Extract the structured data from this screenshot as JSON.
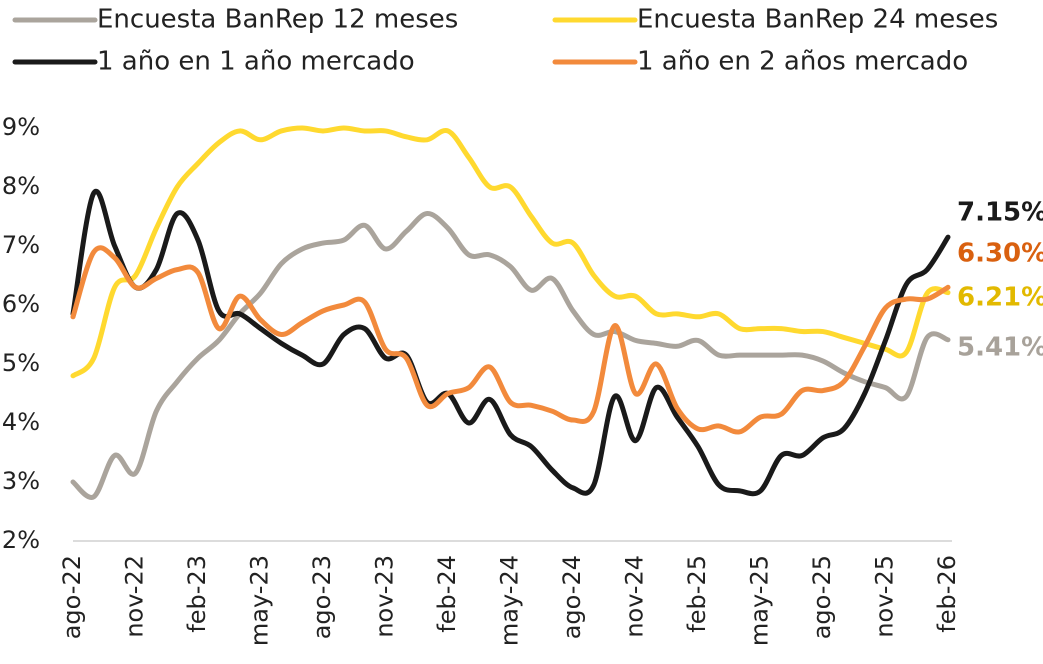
{
  "chart_data": {
    "type": "line",
    "categories": [
      "ago-22",
      null,
      null,
      "nov-22",
      null,
      null,
      "feb-23",
      null,
      null,
      "may-23",
      null,
      null,
      "ago-23",
      null,
      null,
      "nov-23",
      null,
      null,
      "feb-24",
      null,
      null,
      "may-24",
      null,
      null,
      "ago-24",
      null,
      null,
      "nov-24",
      null,
      null,
      "feb-25",
      null,
      null,
      "may-25",
      null,
      null,
      "ago-25",
      null,
      null,
      "nov-25",
      null,
      null,
      "feb-26"
    ],
    "series": [
      {
        "name": "Encuesta BanRep 12 meses",
        "color": "#aaa49c",
        "label_color": "#a8a29a",
        "values": [
          3.0,
          2.75,
          3.45,
          3.15,
          4.2,
          4.7,
          5.1,
          5.4,
          5.85,
          6.2,
          6.7,
          6.95,
          7.05,
          7.1,
          7.35,
          6.95,
          7.25,
          7.55,
          7.3,
          6.85,
          6.85,
          6.65,
          6.25,
          6.45,
          5.9,
          5.5,
          5.55,
          5.4,
          5.35,
          5.3,
          5.4,
          5.15,
          5.15,
          5.15,
          5.15,
          5.15,
          5.05,
          4.85,
          4.7,
          4.6,
          4.45,
          5.45,
          5.41
        ],
        "value_labels": [
          null,
          null,
          null,
          null,
          null,
          null,
          null,
          null,
          null,
          null,
          null,
          null,
          null,
          null,
          null,
          null,
          null,
          null,
          null,
          null,
          null,
          null,
          null,
          null,
          null,
          null,
          null,
          null,
          null,
          null,
          null,
          null,
          null,
          null,
          null,
          null,
          null,
          null,
          null,
          null,
          null,
          null,
          "5.41%"
        ]
      },
      {
        "name": "Encuesta BanRep 24 meses",
        "color": "#ffd92f",
        "label_color": "#e2b900",
        "values": [
          4.8,
          5.1,
          6.3,
          6.5,
          7.3,
          8.0,
          8.4,
          8.75,
          8.95,
          8.8,
          8.95,
          9.0,
          8.95,
          9.0,
          8.95,
          8.95,
          8.85,
          8.8,
          8.95,
          8.5,
          8.0,
          8.0,
          7.5,
          7.05,
          7.05,
          6.5,
          6.15,
          6.15,
          5.85,
          5.85,
          5.8,
          5.85,
          5.6,
          5.6,
          5.6,
          5.55,
          5.55,
          5.45,
          5.35,
          5.25,
          5.2,
          6.2,
          6.21
        ],
        "value_labels": [
          null,
          null,
          null,
          null,
          null,
          null,
          null,
          null,
          null,
          null,
          null,
          null,
          null,
          null,
          null,
          null,
          null,
          null,
          null,
          null,
          null,
          null,
          null,
          null,
          null,
          null,
          null,
          null,
          null,
          null,
          null,
          null,
          null,
          null,
          null,
          null,
          null,
          null,
          null,
          null,
          null,
          null,
          "6.21%"
        ]
      },
      {
        "name": "1 año en 1 año mercado",
        "color": "#1a1a1a",
        "label_color": "#1a1a1a",
        "values": [
          5.85,
          7.9,
          7.0,
          6.3,
          6.6,
          7.55,
          7.1,
          5.9,
          5.85,
          5.6,
          5.35,
          5.15,
          5.0,
          5.5,
          5.6,
          5.1,
          5.15,
          4.35,
          4.5,
          4.0,
          4.4,
          3.8,
          3.6,
          3.2,
          2.9,
          2.95,
          4.45,
          3.7,
          4.6,
          4.1,
          3.6,
          2.95,
          2.85,
          2.85,
          3.45,
          3.45,
          3.75,
          3.9,
          4.5,
          5.4,
          6.35,
          6.6,
          7.15
        ],
        "value_labels": [
          null,
          null,
          null,
          null,
          null,
          null,
          null,
          null,
          null,
          null,
          null,
          null,
          null,
          null,
          null,
          null,
          null,
          null,
          null,
          null,
          null,
          null,
          null,
          null,
          null,
          null,
          null,
          null,
          null,
          null,
          null,
          null,
          null,
          null,
          null,
          null,
          null,
          null,
          null,
          null,
          null,
          null,
          "7.15%"
        ]
      },
      {
        "name": "1 año en 2 años mercado",
        "color": "#f28a3c",
        "label_color": "#d9600f",
        "values": [
          5.8,
          6.9,
          6.8,
          6.3,
          6.45,
          6.6,
          6.55,
          5.6,
          6.15,
          5.75,
          5.5,
          5.7,
          5.9,
          6.0,
          6.05,
          5.25,
          5.1,
          4.3,
          4.5,
          4.6,
          4.95,
          4.35,
          4.3,
          4.2,
          4.05,
          4.2,
          5.65,
          4.5,
          5.0,
          4.25,
          3.9,
          3.95,
          3.85,
          4.1,
          4.15,
          4.55,
          4.55,
          4.7,
          5.3,
          5.95,
          6.1,
          6.1,
          6.3
        ],
        "value_labels": [
          null,
          null,
          null,
          null,
          null,
          null,
          null,
          null,
          null,
          null,
          null,
          null,
          null,
          null,
          null,
          null,
          null,
          null,
          null,
          null,
          null,
          null,
          null,
          null,
          null,
          null,
          null,
          null,
          null,
          null,
          null,
          null,
          null,
          null,
          null,
          null,
          null,
          null,
          null,
          null,
          null,
          null,
          "6.30%"
        ]
      }
    ],
    "ylim": [
      2,
      9
    ],
    "yticks": [
      {
        "value": 2,
        "label": "2%"
      },
      {
        "value": 3,
        "label": "3%"
      },
      {
        "value": 4,
        "label": "4%"
      },
      {
        "value": 5,
        "label": "5%"
      },
      {
        "value": 6,
        "label": "6%"
      },
      {
        "value": 7,
        "label": "7%"
      },
      {
        "value": 8,
        "label": "8%"
      },
      {
        "value": 9,
        "label": "9%"
      }
    ],
    "legend": "top"
  }
}
